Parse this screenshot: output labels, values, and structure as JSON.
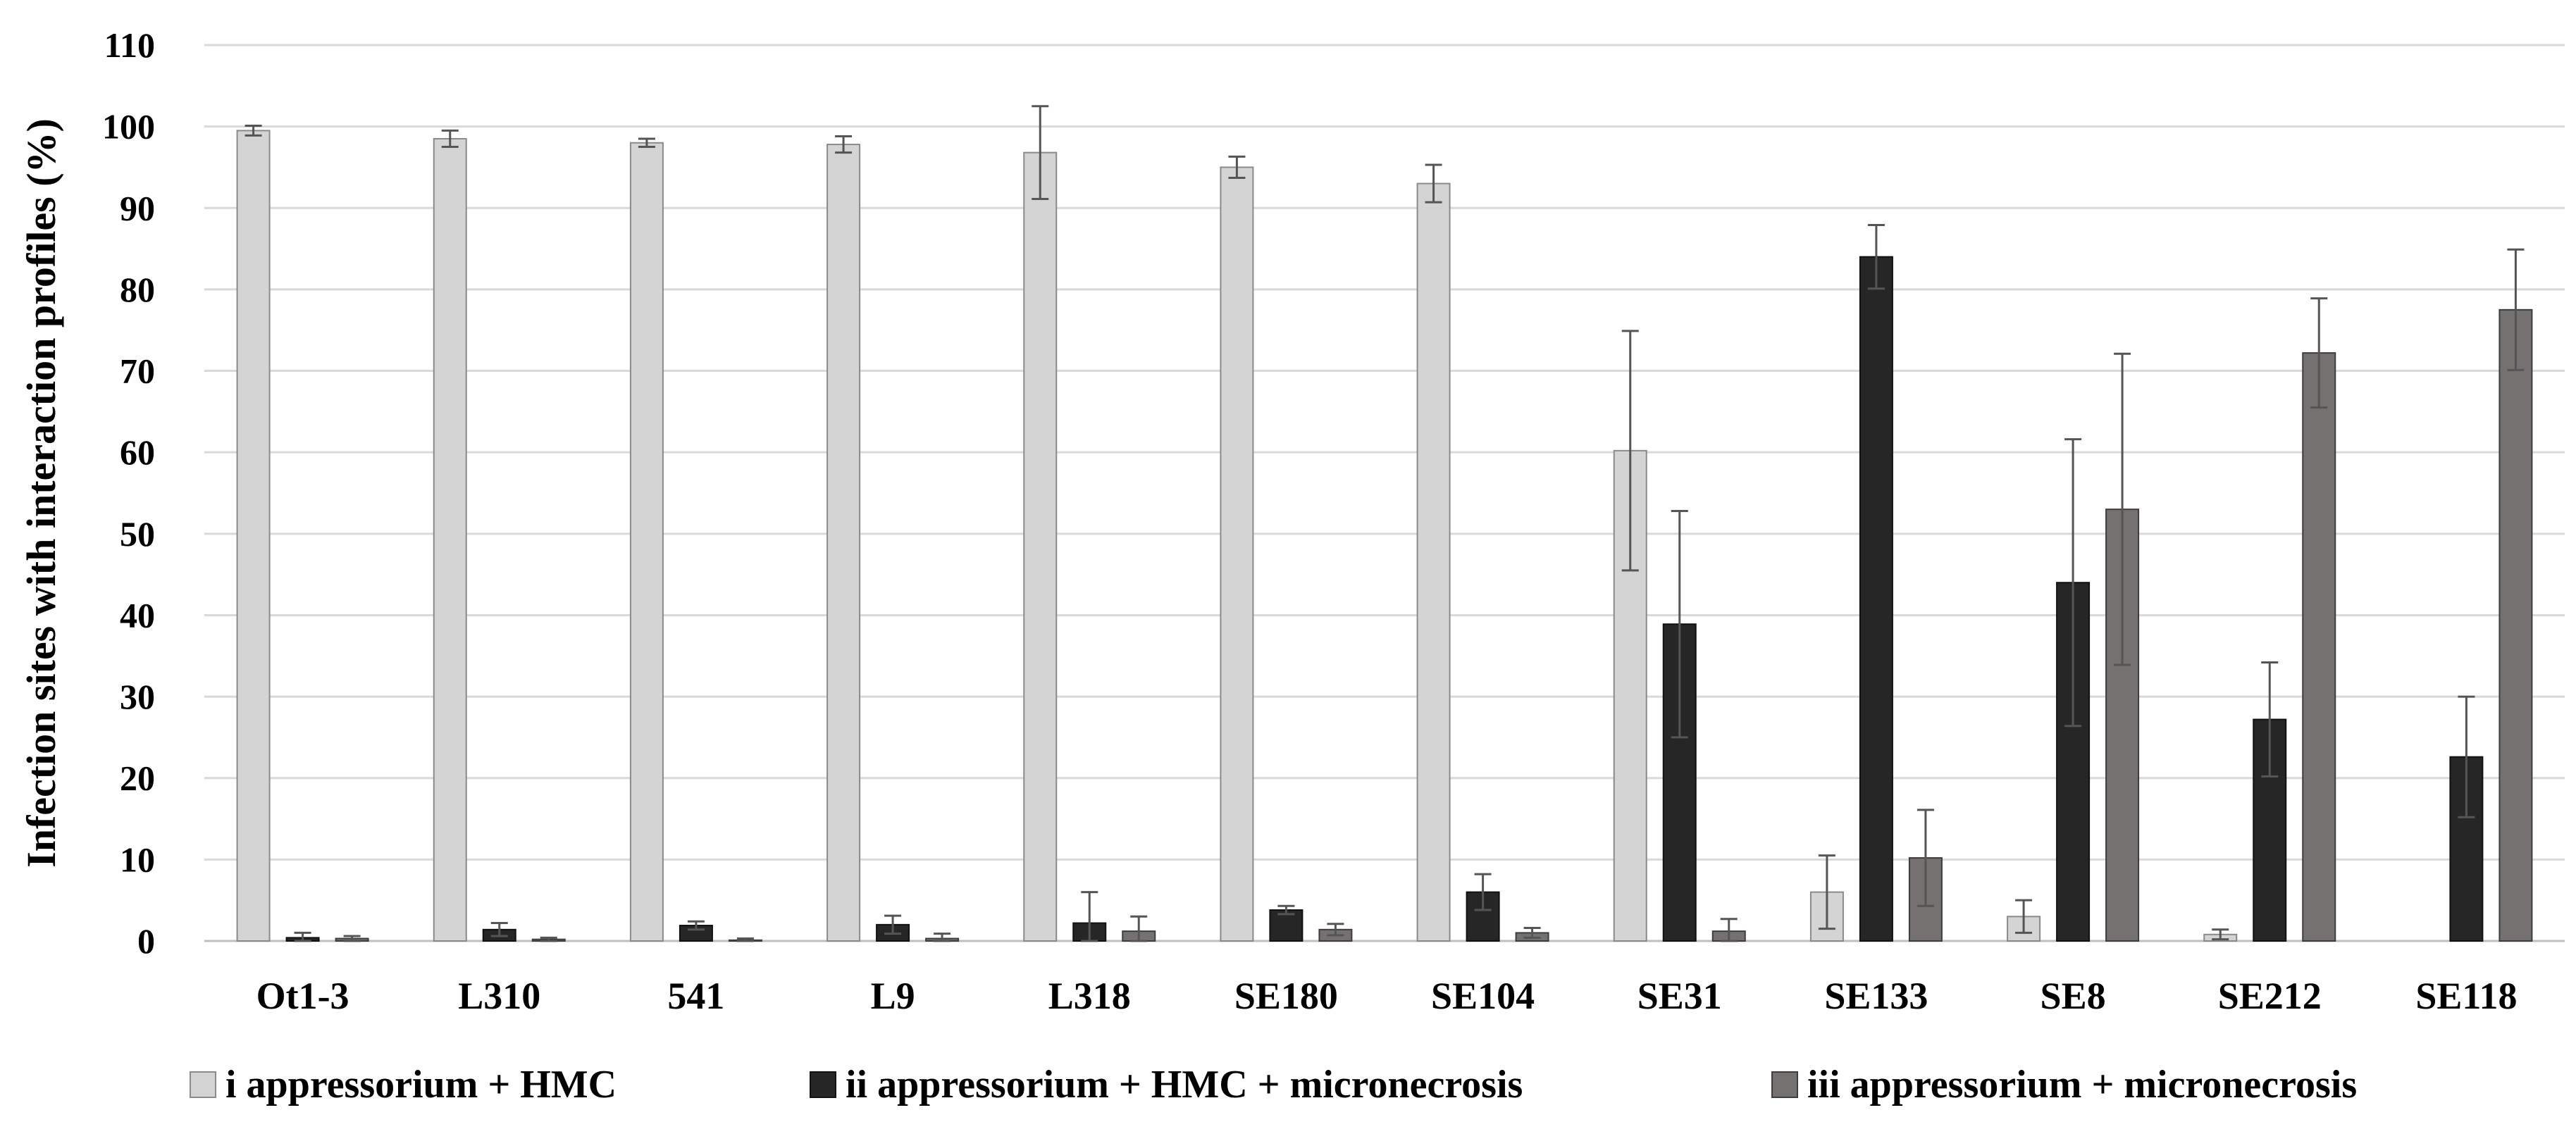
{
  "chart_data": {
    "type": "bar",
    "title": "",
    "xlabel": "",
    "ylabel": "Infection sites with interaction profiles (%)",
    "ylim": [
      0,
      110
    ],
    "yticks": [
      0,
      10,
      20,
      30,
      40,
      50,
      60,
      70,
      80,
      90,
      100,
      110
    ],
    "grid": true,
    "legend_position": "bottom",
    "categories": [
      "Ot1-3",
      "L310",
      "541",
      "L9",
      "L318",
      "SE180",
      "SE104",
      "SE31",
      "SE133",
      "SE8",
      "SE212",
      "SE118"
    ],
    "series": [
      {
        "name": "i appressorium + HMC",
        "color": "#d4d4d4",
        "stroke": "#8a8a8a",
        "values": [
          99.5,
          98.5,
          98.0,
          97.8,
          96.8,
          95.0,
          93.0,
          60.2,
          6.0,
          3.0,
          0.8,
          0.0
        ],
        "errors": [
          0.6,
          1.0,
          0.5,
          1.0,
          5.7,
          1.3,
          2.3,
          14.7,
          4.5,
          2.0,
          0.6,
          0.0
        ]
      },
      {
        "name": "ii appressorium + HMC + micronecrosis",
        "color": "#262626",
        "stroke": "#111111",
        "values": [
          0.4,
          1.4,
          1.9,
          2.0,
          2.2,
          3.8,
          6.0,
          38.9,
          84.0,
          44.0,
          27.2,
          22.6
        ],
        "errors": [
          0.6,
          0.8,
          0.5,
          1.1,
          3.8,
          0.5,
          2.2,
          13.9,
          3.9,
          17.6,
          7.0,
          7.4
        ]
      },
      {
        "name": "iii appressorium + micronecrosis",
        "color": "#767171",
        "stroke": "#3d3d3d",
        "values": [
          0.3,
          0.2,
          0.1,
          0.3,
          1.2,
          1.4,
          1.0,
          1.2,
          10.2,
          53.0,
          72.2,
          77.5
        ],
        "errors": [
          0.3,
          0.2,
          0.2,
          0.6,
          1.8,
          0.7,
          0.6,
          1.5,
          5.9,
          19.1,
          6.7,
          7.4
        ]
      }
    ]
  }
}
